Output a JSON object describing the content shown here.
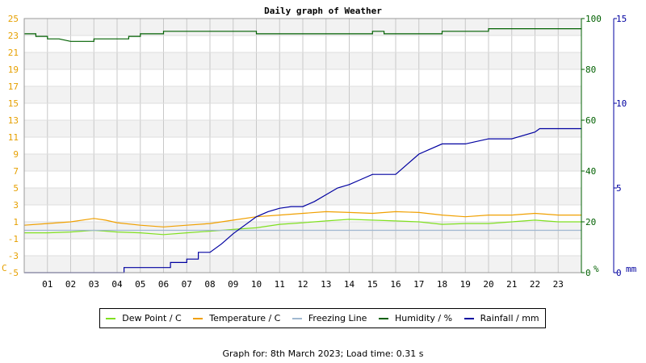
{
  "chart_data": {
    "type": "line",
    "title": "Daily graph of Weather",
    "x": {
      "tick_labels": [
        "01",
        "02",
        "03",
        "04",
        "05",
        "06",
        "07",
        "08",
        "09",
        "10",
        "11",
        "12",
        "13",
        "14",
        "15",
        "16",
        "17",
        "18",
        "19",
        "20",
        "21",
        "22",
        "23"
      ],
      "range_hours": [
        0,
        24
      ]
    },
    "axes": {
      "temperature": {
        "range": [
          -5,
          25
        ],
        "tick_labels": [
          "25",
          "23",
          "21",
          "19",
          "17",
          "15",
          "13",
          "11",
          "9",
          "7",
          "5",
          "3",
          "1",
          "-1",
          "-3",
          "-5"
        ],
        "unit_label": "C",
        "color": "#e6a000"
      },
      "humidity": {
        "range": [
          0,
          100
        ],
        "tick_labels": [
          "100",
          "80",
          "60",
          "40",
          "20",
          "0"
        ],
        "unit_label": "%",
        "color": "#006000"
      },
      "rainfall": {
        "range": [
          0,
          15
        ],
        "tick_labels": [
          "15",
          "10",
          "5",
          "0"
        ],
        "unit_label": "mm",
        "color": "#0000a0"
      }
    },
    "grid": true,
    "legend_position": "bottom",
    "series": [
      {
        "name": "Dew Point / C",
        "axis": "temperature",
        "color": "#80e020",
        "points": [
          [
            0,
            -0.3
          ],
          [
            1,
            -0.3
          ],
          [
            2,
            -0.2
          ],
          [
            3,
            0.0
          ],
          [
            4,
            -0.2
          ],
          [
            5,
            -0.3
          ],
          [
            6,
            -0.5
          ],
          [
            7,
            -0.3
          ],
          [
            8,
            -0.1
          ],
          [
            9,
            0.1
          ],
          [
            10,
            0.3
          ],
          [
            11,
            0.7
          ],
          [
            12,
            0.9
          ],
          [
            13,
            1.1
          ],
          [
            14,
            1.3
          ],
          [
            15,
            1.2
          ],
          [
            16,
            1.1
          ],
          [
            17,
            1.0
          ],
          [
            18,
            0.7
          ],
          [
            19,
            0.8
          ],
          [
            20,
            0.8
          ],
          [
            21,
            1.0
          ],
          [
            22,
            1.2
          ],
          [
            23,
            1.0
          ],
          [
            24,
            1.0
          ]
        ]
      },
      {
        "name": "Temperature / C",
        "axis": "temperature",
        "color": "#f0a000",
        "points": [
          [
            0,
            0.6
          ],
          [
            1,
            0.8
          ],
          [
            2,
            1.0
          ],
          [
            3,
            1.4
          ],
          [
            3.5,
            1.2
          ],
          [
            4,
            0.9
          ],
          [
            5,
            0.6
          ],
          [
            6,
            0.4
          ],
          [
            7,
            0.6
          ],
          [
            8,
            0.8
          ],
          [
            9,
            1.2
          ],
          [
            10,
            1.6
          ],
          [
            11,
            1.8
          ],
          [
            12,
            2.0
          ],
          [
            13,
            2.2
          ],
          [
            14,
            2.1
          ],
          [
            15,
            2.0
          ],
          [
            16,
            2.2
          ],
          [
            17,
            2.1
          ],
          [
            18,
            1.8
          ],
          [
            19,
            1.6
          ],
          [
            20,
            1.8
          ],
          [
            21,
            1.8
          ],
          [
            22,
            2.0
          ],
          [
            23,
            1.8
          ],
          [
            24,
            1.8
          ]
        ]
      },
      {
        "name": "Freezing Line",
        "axis": "temperature",
        "color": "#a0b8d0",
        "points": [
          [
            0,
            0
          ],
          [
            24,
            0
          ]
        ]
      },
      {
        "name": "Humidity / %",
        "axis": "humidity",
        "color": "#006000",
        "points": [
          [
            0,
            94
          ],
          [
            0.5,
            94
          ],
          [
            0.5,
            93
          ],
          [
            1,
            93
          ],
          [
            1,
            92
          ],
          [
            1.5,
            92
          ],
          [
            2,
            91
          ],
          [
            3,
            91
          ],
          [
            3,
            92
          ],
          [
            4,
            92
          ],
          [
            4.5,
            92
          ],
          [
            4.5,
            93
          ],
          [
            5,
            93
          ],
          [
            5,
            94
          ],
          [
            6,
            94
          ],
          [
            6,
            95
          ],
          [
            10,
            95
          ],
          [
            10,
            94
          ],
          [
            15,
            94
          ],
          [
            15,
            95
          ],
          [
            15.5,
            95
          ],
          [
            15.5,
            94
          ],
          [
            18,
            94
          ],
          [
            18,
            95
          ],
          [
            20,
            95
          ],
          [
            20,
            96
          ],
          [
            22,
            96
          ],
          [
            22,
            96
          ],
          [
            24,
            96
          ]
        ]
      },
      {
        "name": "Rainfall / mm",
        "axis": "rainfall",
        "color": "#0000a0",
        "points": [
          [
            0,
            0
          ],
          [
            4.3,
            0
          ],
          [
            4.3,
            0.3
          ],
          [
            6.3,
            0.3
          ],
          [
            6.3,
            0.6
          ],
          [
            7,
            0.6
          ],
          [
            7,
            0.8
          ],
          [
            7.5,
            0.8
          ],
          [
            7.5,
            1.2
          ],
          [
            8,
            1.2
          ],
          [
            8.5,
            1.7
          ],
          [
            9,
            2.3
          ],
          [
            9.5,
            2.8
          ],
          [
            10,
            3.3
          ],
          [
            10.5,
            3.6
          ],
          [
            11,
            3.8
          ],
          [
            11.5,
            3.9
          ],
          [
            12,
            3.9
          ],
          [
            12.5,
            4.2
          ],
          [
            13,
            4.6
          ],
          [
            13.5,
            5.0
          ],
          [
            14,
            5.2
          ],
          [
            14.5,
            5.5
          ],
          [
            15,
            5.8
          ],
          [
            16,
            5.8
          ],
          [
            16.5,
            6.4
          ],
          [
            17,
            7.0
          ],
          [
            17.5,
            7.3
          ],
          [
            18,
            7.6
          ],
          [
            19,
            7.6
          ],
          [
            20,
            7.9
          ],
          [
            21,
            7.9
          ],
          [
            22,
            8.3
          ],
          [
            22.2,
            8.5
          ],
          [
            24,
            8.5
          ]
        ]
      }
    ],
    "footer": "Graph for: 8th March 2023; Load time: 0.31 s"
  }
}
